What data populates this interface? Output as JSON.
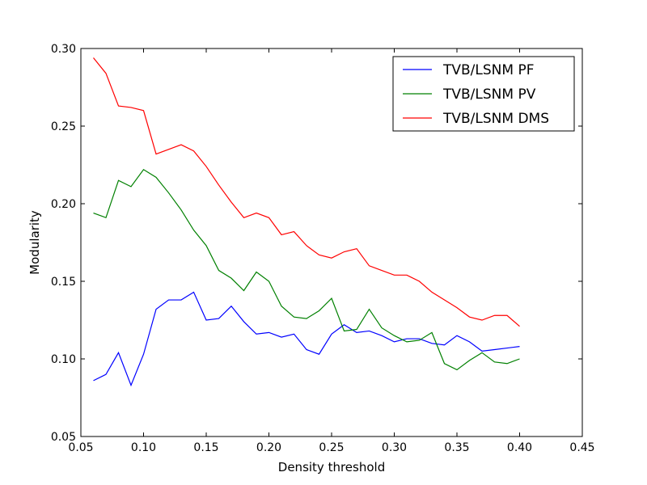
{
  "chart_data": {
    "type": "line",
    "xlabel": "Density threshold",
    "ylabel": "Modularity",
    "xlim": [
      0.05,
      0.45
    ],
    "ylim": [
      0.05,
      0.3
    ],
    "xticks": [
      "0.05",
      "0.10",
      "0.15",
      "0.20",
      "0.25",
      "0.30",
      "0.35",
      "0.40",
      "0.45"
    ],
    "yticks": [
      "0.05",
      "0.10",
      "0.15",
      "0.20",
      "0.25",
      "0.30"
    ],
    "grid": false,
    "legend_position": "top-right",
    "x": [
      0.06,
      0.07,
      0.08,
      0.09,
      0.1,
      0.11,
      0.12,
      0.13,
      0.14,
      0.15,
      0.16,
      0.17,
      0.18,
      0.19,
      0.2,
      0.21,
      0.22,
      0.23,
      0.24,
      0.25,
      0.26,
      0.27,
      0.28,
      0.29,
      0.3,
      0.31,
      0.32,
      0.33,
      0.34,
      0.35,
      0.36,
      0.37,
      0.38,
      0.39,
      0.4
    ],
    "series": [
      {
        "name": "TVB/LSNM PF",
        "color": "#0000ff",
        "values": [
          0.086,
          0.09,
          0.104,
          0.083,
          0.103,
          0.132,
          0.138,
          0.138,
          0.143,
          0.125,
          0.126,
          0.134,
          0.124,
          0.116,
          0.117,
          0.114,
          0.116,
          0.106,
          0.103,
          0.116,
          0.122,
          0.117,
          0.118,
          0.115,
          0.111,
          0.113,
          0.113,
          0.11,
          0.109,
          0.115,
          0.111,
          0.105,
          0.106,
          0.107,
          0.108
        ]
      },
      {
        "name": "TVB/LSNM PV",
        "color": "#008000",
        "values": [
          0.194,
          0.191,
          0.215,
          0.211,
          0.222,
          0.217,
          0.207,
          0.196,
          0.183,
          0.173,
          0.157,
          0.152,
          0.144,
          0.156,
          0.15,
          0.134,
          0.127,
          0.126,
          0.131,
          0.139,
          0.118,
          0.119,
          0.132,
          0.12,
          0.115,
          0.111,
          0.112,
          0.117,
          0.097,
          0.093,
          0.099,
          0.104,
          0.098,
          0.097,
          0.1
        ]
      },
      {
        "name": "TVB/LSNM DMS",
        "color": "#ff0000",
        "values": [
          0.294,
          0.284,
          0.263,
          0.262,
          0.26,
          0.232,
          0.235,
          0.238,
          0.234,
          0.224,
          0.212,
          0.201,
          0.191,
          0.194,
          0.191,
          0.18,
          0.182,
          0.173,
          0.167,
          0.165,
          0.169,
          0.171,
          0.16,
          0.157,
          0.154,
          0.154,
          0.15,
          0.143,
          0.138,
          0.133,
          0.127,
          0.125,
          0.128,
          0.128,
          0.121
        ]
      }
    ]
  }
}
